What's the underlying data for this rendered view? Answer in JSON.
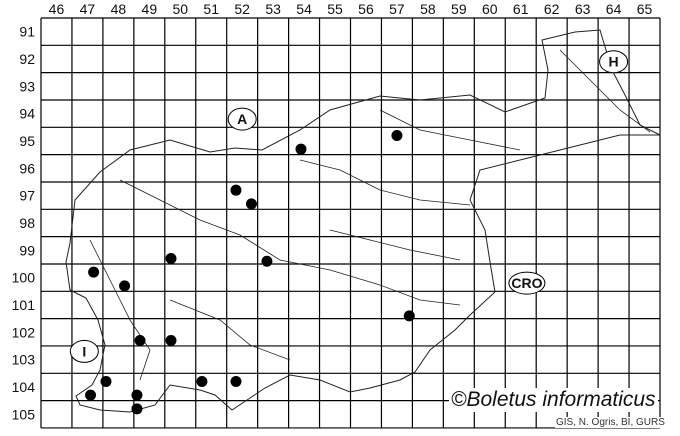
{
  "map": {
    "columns": [
      "46",
      "47",
      "48",
      "49",
      "50",
      "51",
      "52",
      "53",
      "54",
      "55",
      "56",
      "57",
      "58",
      "59",
      "60",
      "61",
      "62",
      "63",
      "64",
      "65"
    ],
    "rows": [
      "91",
      "92",
      "93",
      "94",
      "95",
      "96",
      "97",
      "98",
      "99",
      "100",
      "101",
      "102",
      "103",
      "104",
      "105"
    ],
    "country_labels": [
      {
        "text": "A",
        "col": 52.5,
        "row": 94.7
      },
      {
        "text": "H",
        "col": 64.5,
        "row": 92.6
      },
      {
        "text": "CRO",
        "col": 61.7,
        "row": 100.7
      },
      {
        "text": "I",
        "col": 47.4,
        "row": 103.2
      }
    ],
    "records": [
      {
        "col": 57.5,
        "row": 95.3
      },
      {
        "col": 54.4,
        "row": 95.8
      },
      {
        "col": 52.3,
        "row": 97.3
      },
      {
        "col": 52.8,
        "row": 97.8
      },
      {
        "col": 50.2,
        "row": 99.8
      },
      {
        "col": 53.3,
        "row": 99.9
      },
      {
        "col": 47.7,
        "row": 100.3
      },
      {
        "col": 48.7,
        "row": 100.8
      },
      {
        "col": 57.9,
        "row": 101.9
      },
      {
        "col": 49.2,
        "row": 102.8
      },
      {
        "col": 50.2,
        "row": 102.8
      },
      {
        "col": 48.1,
        "row": 104.3
      },
      {
        "col": 47.6,
        "row": 104.8
      },
      {
        "col": 49.1,
        "row": 104.8
      },
      {
        "col": 51.2,
        "row": 104.3
      },
      {
        "col": 52.3,
        "row": 104.3
      },
      {
        "col": 49.1,
        "row": 105.3
      }
    ],
    "record_color": "#000000"
  },
  "credit": "©Boletus informaticus",
  "source": "GIS, N. Ogris, BI, GURS"
}
